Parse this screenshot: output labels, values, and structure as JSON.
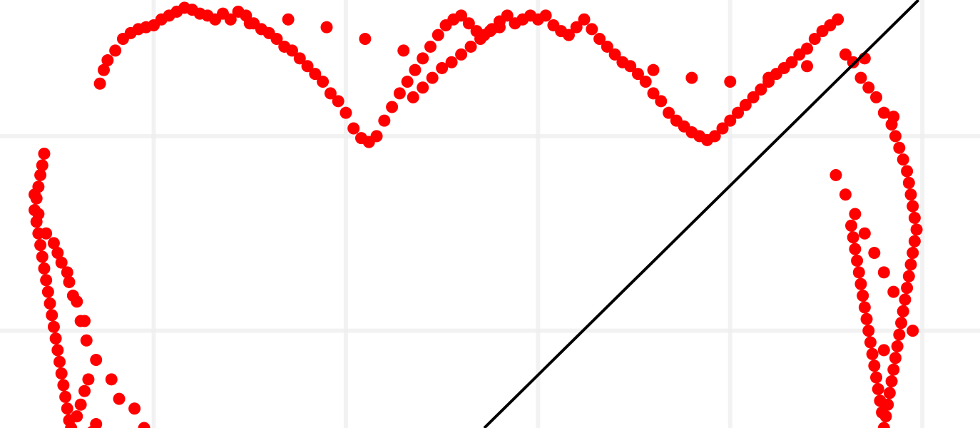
{
  "chart_data": {
    "type": "scatter",
    "title": "",
    "xlabel": "",
    "ylabel": "",
    "xlim": [
      -0.8,
      4.3
    ],
    "ylim": [
      -1.5,
      0.7
    ],
    "grid": true,
    "grid_x": [
      0,
      1,
      2,
      3,
      4
    ],
    "grid_y": [
      0,
      -1
    ],
    "legend": "none",
    "colors": {
      "points": "#ff0000",
      "line": "#000000",
      "grid": "#eeeeee"
    },
    "series": [
      {
        "kind": "points",
        "x": [
          -0.57,
          -0.58,
          -0.59,
          -0.6,
          -0.61,
          -0.62,
          -0.61,
          -0.6,
          -0.59,
          -0.58,
          -0.57,
          -0.56,
          -0.55,
          -0.54,
          -0.53,
          -0.52,
          -0.51,
          -0.5,
          -0.49,
          -0.48,
          -0.47,
          -0.46,
          -0.45,
          -0.44,
          -0.43,
          -0.42,
          -0.4,
          -0.38,
          -0.36,
          -0.34,
          -0.32,
          -0.3,
          -0.28,
          -0.26,
          -0.24,
          -0.2,
          -0.16,
          -0.12,
          -0.08,
          -0.04,
          0.0,
          0.04,
          0.08,
          0.12,
          0.16,
          0.2,
          0.24,
          0.28,
          0.32,
          0.36,
          0.4,
          0.44,
          0.48,
          0.52,
          0.56,
          0.6,
          0.64,
          0.68,
          0.72,
          0.76,
          0.8,
          0.84,
          0.88,
          0.92,
          0.96,
          1.0,
          1.04,
          1.08,
          1.12,
          1.16,
          1.2,
          1.24,
          1.28,
          1.32,
          1.36,
          1.4,
          1.44,
          1.48,
          1.52,
          1.56,
          1.6,
          1.64,
          1.68,
          1.72,
          1.76,
          1.8,
          1.84,
          1.88,
          1.92,
          1.96,
          2.0,
          2.04,
          2.08,
          2.12,
          2.16,
          2.2,
          2.24,
          2.28,
          2.32,
          2.36,
          2.4,
          2.44,
          2.48,
          2.52,
          2.56,
          2.6,
          2.64,
          2.68,
          2.72,
          2.76,
          2.8,
          2.84,
          2.88,
          2.92,
          2.96,
          3.0,
          3.04,
          3.08,
          3.12,
          3.16,
          3.2,
          3.24,
          3.28,
          3.32,
          3.36,
          3.4,
          3.44,
          3.48,
          3.52,
          3.56,
          3.6,
          3.64,
          3.68,
          3.72,
          3.76,
          3.8,
          3.84,
          3.86,
          3.88,
          3.9,
          3.92,
          3.93,
          3.94,
          3.95,
          3.96,
          3.97,
          3.96,
          3.95,
          3.94,
          3.93,
          3.92,
          3.91,
          3.9,
          3.89,
          3.88,
          3.87,
          3.86,
          3.85,
          3.84,
          3.83,
          3.82,
          3.81,
          3.8,
          3.79,
          3.78,
          3.77,
          3.76,
          3.75,
          3.74,
          3.73,
          3.72,
          3.71,
          3.7,
          3.69,
          3.68,
          3.67,
          3.66,
          3.65,
          3.64,
          3.63,
          -0.5,
          -0.45,
          -0.42,
          -0.38,
          -0.35,
          -0.3,
          -0.22,
          -0.18,
          -0.1,
          -0.05,
          1.35,
          1.4,
          1.45,
          1.5,
          1.55,
          1.6,
          1.65,
          1.7,
          1.75,
          1.8,
          3.55,
          3.6,
          3.65,
          3.7,
          3.75,
          3.8,
          3.85,
          3.9,
          3.95,
          3.8,
          -0.62,
          -0.6,
          -0.56,
          -0.52,
          -0.48,
          -0.44,
          -0.4,
          -0.36,
          0.5,
          0.7,
          0.9,
          1.1,
          1.3,
          2.6,
          2.8,
          3.0,
          3.2,
          3.4,
          3.7,
          3.85
        ],
        "y": [
          -0.09,
          -0.15,
          -0.2,
          -0.26,
          -0.32,
          -0.38,
          -0.44,
          -0.5,
          -0.56,
          -0.62,
          -0.68,
          -0.74,
          -0.8,
          -0.86,
          -0.92,
          -0.98,
          -1.04,
          -1.1,
          -1.16,
          -1.22,
          -1.28,
          -1.34,
          -1.4,
          -1.46,
          -1.5,
          -1.53,
          -1.44,
          -1.38,
          -1.31,
          -1.25,
          -1.52,
          -1.48,
          0.27,
          0.34,
          0.39,
          0.44,
          0.5,
          0.53,
          0.55,
          0.56,
          0.57,
          0.6,
          0.62,
          0.64,
          0.66,
          0.65,
          0.63,
          0.62,
          0.6,
          0.63,
          0.6,
          0.64,
          0.62,
          0.58,
          0.55,
          0.53,
          0.5,
          0.46,
          0.44,
          0.4,
          0.36,
          0.32,
          0.28,
          0.22,
          0.18,
          0.12,
          0.04,
          -0.01,
          -0.03,
          0.0,
          0.08,
          0.15,
          0.22,
          0.28,
          0.34,
          0.4,
          0.46,
          0.52,
          0.57,
          0.6,
          0.62,
          0.58,
          0.54,
          0.52,
          0.55,
          0.59,
          0.62,
          0.58,
          0.6,
          0.62,
          0.6,
          0.62,
          0.57,
          0.54,
          0.52,
          0.56,
          0.6,
          0.55,
          0.5,
          0.46,
          0.42,
          0.38,
          0.36,
          0.32,
          0.28,
          0.22,
          0.18,
          0.12,
          0.08,
          0.05,
          0.02,
          0.0,
          -0.02,
          0.0,
          0.04,
          0.08,
          0.12,
          0.16,
          0.2,
          0.24,
          0.28,
          0.32,
          0.35,
          0.38,
          0.42,
          0.45,
          0.5,
          0.54,
          0.57,
          0.6,
          0.42,
          0.38,
          0.3,
          0.25,
          0.2,
          0.12,
          0.06,
          0.0,
          -0.06,
          -0.12,
          -0.18,
          -0.24,
          -0.3,
          -0.36,
          -0.42,
          -0.48,
          -0.54,
          -0.6,
          -0.66,
          -0.72,
          -0.78,
          -0.84,
          -0.9,
          -0.96,
          -1.02,
          -1.08,
          -1.14,
          -1.2,
          -1.26,
          -1.32,
          -1.38,
          -1.44,
          -1.5,
          -1.42,
          -1.36,
          -1.3,
          -1.24,
          -1.18,
          -1.12,
          -1.06,
          -1.0,
          -0.94,
          -0.88,
          -0.82,
          -0.76,
          -0.7,
          -0.64,
          -0.58,
          -0.52,
          -0.46,
          -0.6,
          -0.7,
          -0.82,
          -0.95,
          -1.05,
          -1.15,
          -1.25,
          -1.35,
          -1.4,
          -1.5,
          0.2,
          0.25,
          0.3,
          0.35,
          0.38,
          0.42,
          0.46,
          0.5,
          0.54,
          0.56,
          -0.2,
          -0.3,
          -0.4,
          -0.5,
          -0.6,
          -0.7,
          -0.8,
          -0.9,
          -1.0,
          -1.1,
          -0.3,
          -0.4,
          -0.5,
          -0.55,
          -0.65,
          -0.75,
          -0.85,
          -0.95,
          0.58,
          0.6,
          0.56,
          0.5,
          0.44,
          0.34,
          0.3,
          0.28,
          0.3,
          0.36,
          0.4,
          0.1
        ]
      },
      {
        "kind": "line",
        "x": [
          1.72,
          3.98
        ],
        "y": [
          -1.5,
          0.7
        ]
      }
    ]
  }
}
